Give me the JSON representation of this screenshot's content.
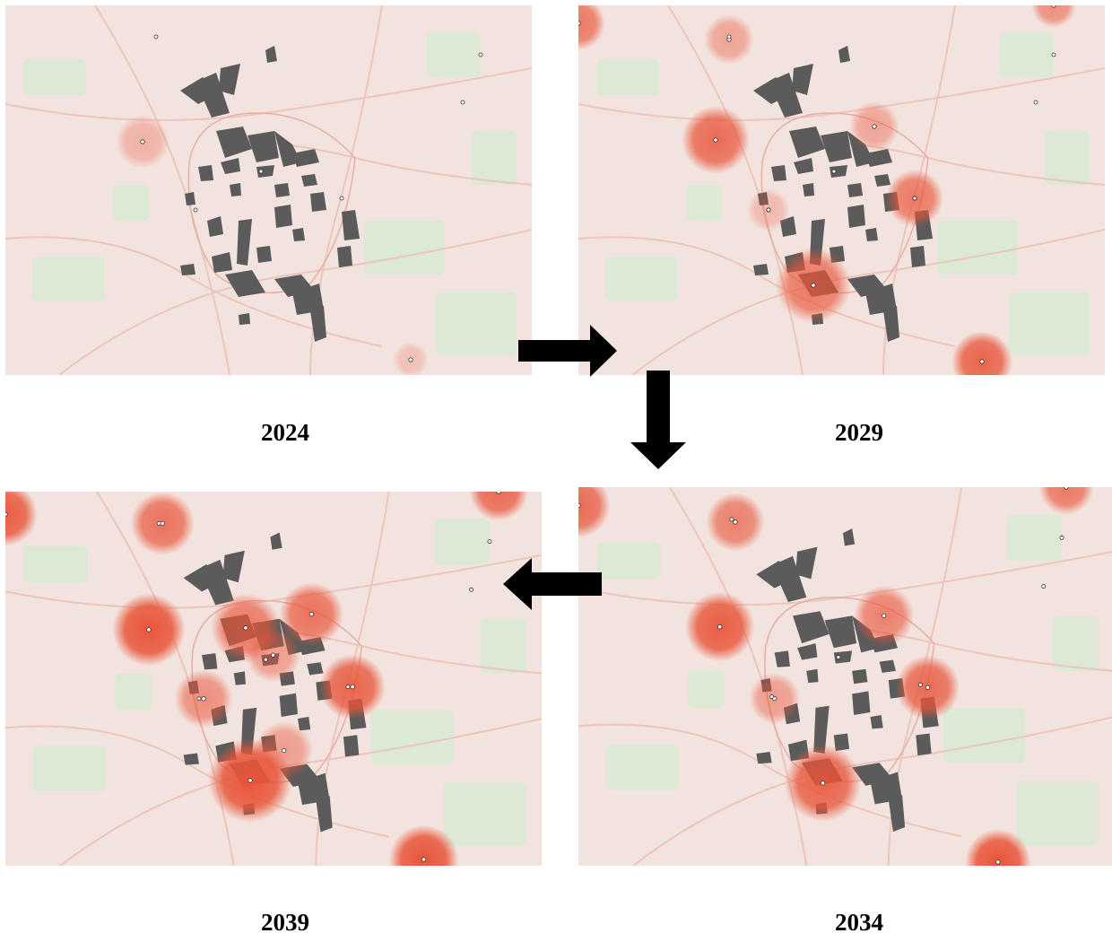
{
  "panels": [
    {
      "id": "p2024",
      "year": "2024",
      "hotspots": [
        [
          153,
          152,
          30,
          0.35
        ],
        [
          452,
          395,
          20,
          0.25
        ]
      ]
    },
    {
      "id": "p2029",
      "year": "2029",
      "hotspots": [
        [
          0,
          20,
          30,
          0.75
        ],
        [
          168,
          38,
          28,
          0.45
        ],
        [
          153,
          150,
          38,
          0.85
        ],
        [
          330,
          135,
          28,
          0.45
        ],
        [
          375,
          215,
          32,
          0.75
        ],
        [
          212,
          228,
          24,
          0.3
        ],
        [
          262,
          312,
          42,
          0.75
        ],
        [
          530,
          0,
          25,
          0.6
        ],
        [
          450,
          397,
          34,
          0.9
        ]
      ]
    },
    {
      "id": "p2034",
      "year": "2034",
      "hotspots": [
        [
          0,
          20,
          35,
          0.85
        ],
        [
          172,
          38,
          32,
          0.7
        ],
        [
          155,
          152,
          38,
          0.95
        ],
        [
          335,
          140,
          33,
          0.7
        ],
        [
          383,
          218,
          35,
          0.85
        ],
        [
          215,
          230,
          28,
          0.5
        ],
        [
          268,
          322,
          42,
          0.9
        ],
        [
          535,
          0,
          30,
          0.75
        ],
        [
          460,
          408,
          36,
          1.0
        ]
      ]
    },
    {
      "id": "p2039",
      "year": "2039",
      "hotspots": [
        [
          0,
          25,
          35,
          0.95
        ],
        [
          172,
          35,
          35,
          0.8
        ],
        [
          157,
          152,
          40,
          1.0
        ],
        [
          263,
          150,
          38,
          0.75
        ],
        [
          335,
          135,
          35,
          0.8
        ],
        [
          293,
          180,
          30,
          0.5
        ],
        [
          380,
          215,
          36,
          0.9
        ],
        [
          217,
          228,
          32,
          0.6
        ],
        [
          268,
          318,
          46,
          1.0
        ],
        [
          305,
          285,
          32,
          0.5
        ],
        [
          540,
          0,
          32,
          0.85
        ],
        [
          458,
          405,
          38,
          1.0
        ]
      ]
    }
  ],
  "map_style": {
    "background": "#f3e3de",
    "green": "#d6ead2",
    "road": "#ecc6bd",
    "block": "#5b5b5b",
    "heat": "#e8553a"
  }
}
